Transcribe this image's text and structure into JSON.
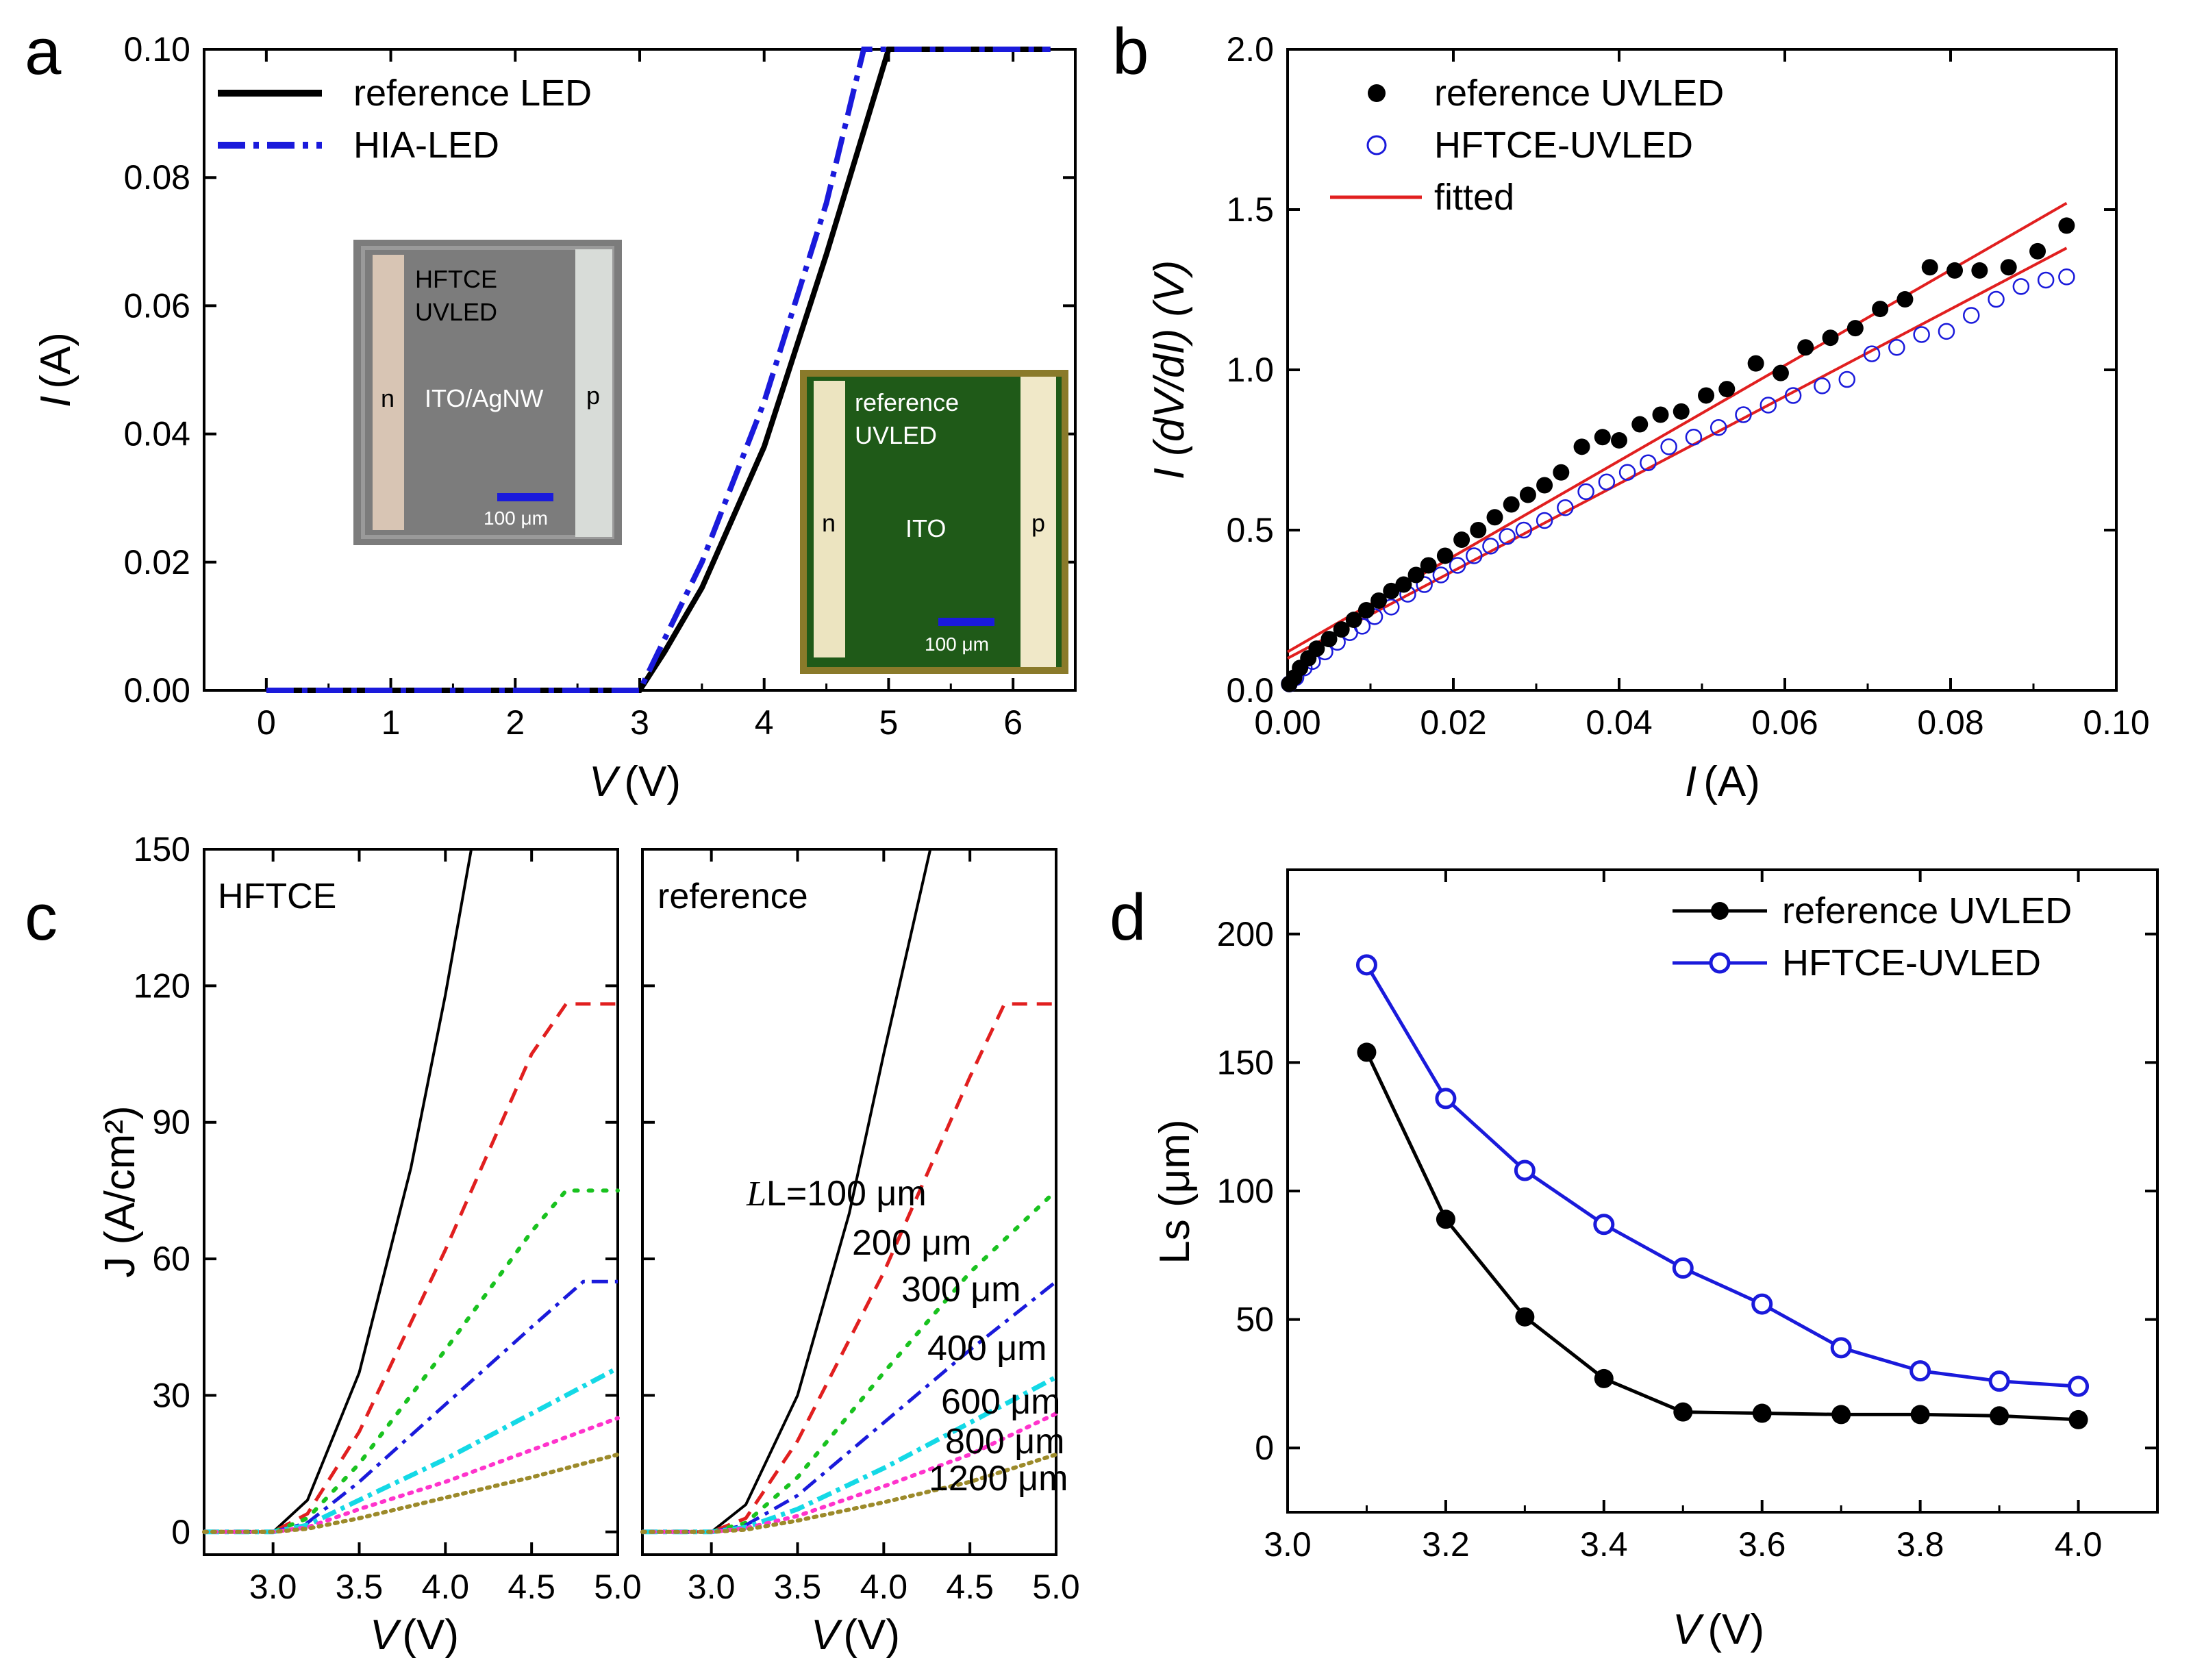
{
  "panels": {
    "a": {
      "letter": "a",
      "xlabel_var": "V",
      "xlabel_unit": "(V)",
      "ylabel_var": "I",
      "ylabel_unit": "(A)",
      "legend": [
        "reference LED",
        "HIA-LED"
      ],
      "inset1": {
        "title1": "HFTCE",
        "title2": "UVLED",
        "center": "ITO/AgNW",
        "n": "n",
        "p": "p",
        "scale": "100 μm"
      },
      "inset2": {
        "title1": "reference",
        "title2": "UVLED",
        "center": "ITO",
        "n": "n",
        "p": "p",
        "scale": "100 μm"
      }
    },
    "b": {
      "letter": "b",
      "xlabel_var": "I",
      "xlabel_unit": "(A)",
      "ylabel": "I (dV/dI) (V)",
      "legend": [
        "reference UVLED",
        "HFTCE-UVLED",
        "fitted"
      ]
    },
    "c": {
      "letter": "c",
      "left_title": "HFTCE",
      "right_title": "reference",
      "xlabel_var": "V",
      "xlabel_unit": "(V)",
      "ylabel": "J (A/cm²)",
      "curve_labels": [
        "L=100 μm",
        "200 μm",
        "300 μm",
        "400 μm",
        "600 μm",
        "800 μm",
        "1200 μm"
      ]
    },
    "d": {
      "letter": "d",
      "xlabel_var": "V",
      "xlabel_unit": "(V)",
      "ylabel": "Ls (μm)",
      "legend": [
        "reference UVLED",
        "HFTCE-UVLED"
      ]
    }
  },
  "colors": {
    "black": "#000000",
    "blue": "#1a1adb",
    "red": "#e11f1f",
    "green": "#19c21f",
    "cyan": "#14d9e6",
    "magenta": "#ff33cc",
    "olive": "#9c8a2a",
    "inset1_bg": "#7c7c7c",
    "inset2_bg": "#1f5a18",
    "inset2_frame": "#8a7a2a"
  },
  "chart_data": [
    {
      "id": "a",
      "type": "line",
      "xlabel": "V (V)",
      "ylabel": "I (A)",
      "xlim": [
        -0.5,
        6.5
      ],
      "ylim": [
        0,
        0.1
      ],
      "xticks": [
        "0",
        "1",
        "2",
        "3",
        "4",
        "5",
        "6"
      ],
      "yticks": [
        "0.00",
        "0.02",
        "0.04",
        "0.06",
        "0.08",
        "0.10"
      ],
      "series": [
        {
          "name": "reference LED",
          "x": [
            0,
            3.0,
            3.2,
            3.5,
            4.0,
            4.5,
            5.0,
            6.3
          ],
          "y": [
            0,
            0,
            0.006,
            0.016,
            0.038,
            0.068,
            0.1,
            0.1
          ]
        },
        {
          "name": "HIA-LED",
          "x": [
            0,
            3.0,
            3.2,
            3.5,
            4.0,
            4.5,
            4.8,
            6.3
          ],
          "y": [
            0,
            0,
            0.008,
            0.02,
            0.045,
            0.076,
            0.1,
            0.1
          ]
        }
      ]
    },
    {
      "id": "b",
      "type": "scatter",
      "xlabel": "I (A)",
      "ylabel": "I (dV/dI) (V)",
      "xlim": [
        0,
        0.1
      ],
      "ylim": [
        0,
        2.0
      ],
      "xticks": [
        "0.00",
        "0.02",
        "0.04",
        "0.06",
        "0.08",
        "0.10"
      ],
      "yticks": [
        "0.0",
        "0.5",
        "1.0",
        "1.5",
        "2.0"
      ],
      "series": [
        {
          "name": "reference UVLED",
          "x": [
            0.0002,
            0.0008,
            0.0015,
            0.0025,
            0.0035,
            0.005,
            0.0065,
            0.008,
            0.0095,
            0.011,
            0.0125,
            0.014,
            0.0155,
            0.017,
            0.019,
            0.021,
            0.023,
            0.025,
            0.027,
            0.029,
            0.031,
            0.033,
            0.0355,
            0.038,
            0.04,
            0.0425,
            0.045,
            0.0475,
            0.0505,
            0.053,
            0.0565,
            0.0595,
            0.0625,
            0.0655,
            0.0685,
            0.0715,
            0.0745,
            0.0775,
            0.0805,
            0.0835,
            0.087,
            0.0905,
            0.094
          ],
          "y": [
            0.02,
            0.04,
            0.07,
            0.1,
            0.13,
            0.16,
            0.19,
            0.22,
            0.25,
            0.28,
            0.31,
            0.33,
            0.36,
            0.39,
            0.42,
            0.47,
            0.5,
            0.54,
            0.58,
            0.61,
            0.64,
            0.68,
            0.76,
            0.79,
            0.78,
            0.83,
            0.86,
            0.87,
            0.92,
            0.94,
            1.02,
            0.99,
            1.07,
            1.1,
            1.13,
            1.19,
            1.22,
            1.32,
            1.31,
            1.31,
            1.32,
            1.37,
            1.45
          ]
        },
        {
          "name": "HFTCE-UVLED",
          "x": [
            0.0002,
            0.001,
            0.002,
            0.003,
            0.0045,
            0.006,
            0.0075,
            0.009,
            0.0105,
            0.0125,
            0.0145,
            0.0165,
            0.0185,
            0.0205,
            0.0225,
            0.0245,
            0.0265,
            0.0285,
            0.031,
            0.0335,
            0.036,
            0.0385,
            0.041,
            0.0435,
            0.046,
            0.049,
            0.052,
            0.055,
            0.058,
            0.061,
            0.0645,
            0.0675,
            0.0705,
            0.0735,
            0.0765,
            0.0795,
            0.0825,
            0.0855,
            0.0885,
            0.0915,
            0.094
          ],
          "y": [
            0.02,
            0.04,
            0.07,
            0.09,
            0.12,
            0.15,
            0.18,
            0.2,
            0.23,
            0.26,
            0.3,
            0.33,
            0.36,
            0.39,
            0.42,
            0.45,
            0.48,
            0.5,
            0.53,
            0.57,
            0.62,
            0.65,
            0.68,
            0.71,
            0.76,
            0.79,
            0.82,
            0.86,
            0.89,
            0.92,
            0.95,
            0.97,
            1.05,
            1.07,
            1.11,
            1.12,
            1.17,
            1.22,
            1.26,
            1.28,
            1.29
          ]
        },
        {
          "name": "fitted",
          "x": [
            0,
            0.094
          ],
          "y": [
            0.12,
            1.52
          ]
        },
        {
          "name": "fitted",
          "x": [
            0,
            0.094
          ],
          "y": [
            0.1,
            1.38
          ]
        }
      ]
    },
    {
      "id": "c-left",
      "type": "line",
      "xlabel": "V (V)",
      "ylabel": "J (A/cm²)",
      "xlim": [
        2.6,
        5.0
      ],
      "ylim": [
        -5,
        150
      ],
      "xticks": [
        "3.0",
        "3.5",
        "4.0",
        "4.5",
        "5.0"
      ],
      "yticks": [
        "0",
        "30",
        "60",
        "90",
        "120",
        "150"
      ],
      "series": [
        {
          "name": "L=100 μm",
          "x": [
            2.6,
            3.0,
            3.2,
            3.5,
            3.8,
            4.0,
            4.15
          ],
          "y": [
            0,
            0,
            7,
            35,
            80,
            118,
            150
          ]
        },
        {
          "name": "200 μm",
          "x": [
            2.6,
            3.0,
            3.2,
            3.5,
            4.0,
            4.5,
            4.7,
            5.0
          ],
          "y": [
            0,
            0,
            4,
            22,
            62,
            105,
            116,
            116
          ]
        },
        {
          "name": "300 μm",
          "x": [
            2.6,
            3.0,
            3.2,
            3.5,
            4.0,
            4.5,
            4.7,
            5.0
          ],
          "y": [
            0,
            0,
            3,
            15,
            40,
            66,
            75,
            75
          ]
        },
        {
          "name": "400 μm",
          "x": [
            2.6,
            3.0,
            3.2,
            3.5,
            4.0,
            4.5,
            4.8,
            5.0
          ],
          "y": [
            0,
            0,
            2,
            11,
            28,
            45,
            55,
            55
          ]
        },
        {
          "name": "600 μm",
          "x": [
            2.6,
            3.0,
            3.2,
            3.5,
            4.0,
            4.5,
            5.0
          ],
          "y": [
            0,
            0,
            1.5,
            7,
            16,
            26,
            36
          ]
        },
        {
          "name": "800 μm",
          "x": [
            2.6,
            3.0,
            3.2,
            3.5,
            4.0,
            4.5,
            5.0
          ],
          "y": [
            0,
            0,
            1,
            5,
            11,
            18,
            25
          ]
        },
        {
          "name": "1200 μm",
          "x": [
            2.6,
            3.0,
            3.2,
            3.5,
            4.0,
            4.5,
            5.0
          ],
          "y": [
            0,
            0,
            0.7,
            3,
            7.5,
            12,
            17
          ]
        }
      ]
    },
    {
      "id": "c-right",
      "type": "line",
      "xlabel": "V (V)",
      "xlim": [
        2.6,
        5.0
      ],
      "ylim": [
        -5,
        150
      ],
      "xticks": [
        "3.0",
        "3.5",
        "4.0",
        "4.5",
        "5.0"
      ],
      "series": [
        {
          "name": "L=100 μm",
          "x": [
            2.6,
            3.0,
            3.2,
            3.5,
            3.8,
            4.0,
            4.27
          ],
          "y": [
            0,
            0,
            6,
            30,
            70,
            105,
            150
          ]
        },
        {
          "name": "200 μm",
          "x": [
            2.6,
            3.0,
            3.2,
            3.5,
            4.0,
            4.5,
            4.7,
            5.0
          ],
          "y": [
            0,
            0,
            3,
            20,
            57,
            100,
            116,
            116
          ]
        },
        {
          "name": "300 μm",
          "x": [
            2.6,
            3.0,
            3.2,
            3.5,
            4.0,
            4.5,
            5.0
          ],
          "y": [
            0,
            0,
            2,
            12,
            35,
            57,
            75
          ]
        },
        {
          "name": "400 μm",
          "x": [
            2.6,
            3.0,
            3.2,
            3.5,
            4.0,
            4.5,
            5.0
          ],
          "y": [
            0,
            0,
            1.5,
            8,
            24,
            40,
            55
          ]
        },
        {
          "name": "600 μm",
          "x": [
            2.6,
            3.0,
            3.2,
            3.5,
            4.0,
            4.5,
            5.0
          ],
          "y": [
            0,
            0,
            1,
            5,
            14,
            24,
            34
          ]
        },
        {
          "name": "800 μm",
          "x": [
            2.6,
            3.0,
            3.2,
            3.5,
            4.0,
            4.5,
            5.0
          ],
          "y": [
            0,
            0,
            0.8,
            3.5,
            10,
            17,
            26
          ]
        },
        {
          "name": "1200 μm",
          "x": [
            2.6,
            3.0,
            3.2,
            3.5,
            4.0,
            4.5,
            5.0
          ],
          "y": [
            0,
            0,
            0.5,
            2.5,
            6.5,
            11,
            17
          ]
        }
      ]
    },
    {
      "id": "d",
      "type": "line",
      "xlabel": "V (V)",
      "ylabel": "Ls (μm)",
      "xlim": [
        3.0,
        4.1
      ],
      "ylim": [
        -25,
        225
      ],
      "xticks": [
        "3.0",
        "3.2",
        "3.4",
        "3.6",
        "3.8",
        "4.0"
      ],
      "yticks": [
        "0",
        "50",
        "100",
        "150",
        "200"
      ],
      "series": [
        {
          "name": "reference UVLED",
          "x": [
            3.1,
            3.2,
            3.3,
            3.4,
            3.5,
            3.6,
            3.7,
            3.8,
            3.9,
            4.0
          ],
          "y": [
            154,
            89,
            51,
            27,
            14,
            13.5,
            13,
            13,
            12.5,
            11
          ]
        },
        {
          "name": "HFTCE-UVLED",
          "x": [
            3.1,
            3.2,
            3.3,
            3.4,
            3.5,
            3.6,
            3.7,
            3.8,
            3.9,
            4.0
          ],
          "y": [
            188,
            136,
            108,
            87,
            70,
            56,
            39,
            30,
            26,
            24
          ]
        }
      ]
    }
  ]
}
